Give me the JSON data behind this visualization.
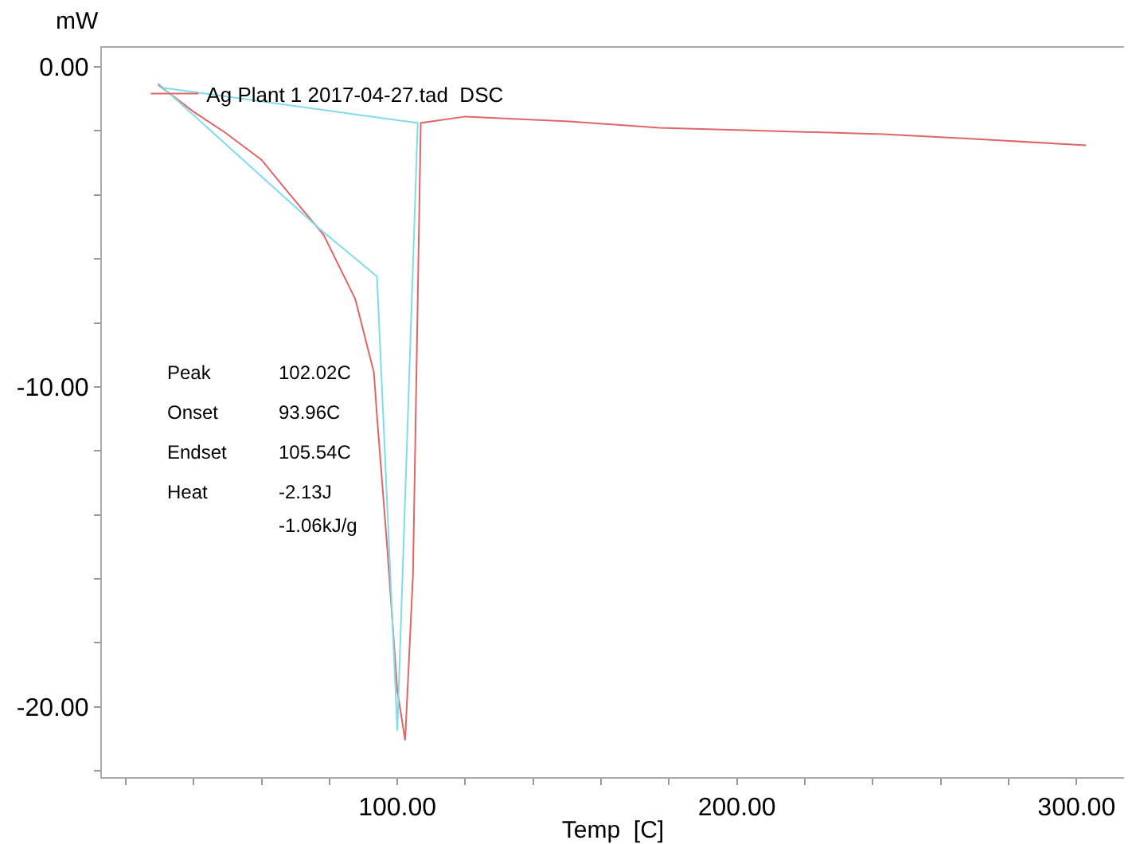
{
  "chart_data": {
    "type": "line",
    "xlabel": "Temp  [C]",
    "ylabel": "mW",
    "series": [
      {
        "name": "Ag Plant 1 2017-04-27.tad  DSC",
        "color": "#e06666",
        "x": [
          29.5,
          40,
          49.3,
          60,
          67.7,
          78.3,
          87.6,
          93.1,
          94,
          97,
          100,
          102.3,
          104.6,
          106.9,
          120,
          150.7,
          177,
          210,
          243,
          270,
          302.8
        ],
        "values": [
          -0.55,
          -1.4,
          -2.05,
          -2.9,
          -3.9,
          -5.25,
          -7.25,
          -9.55,
          -10.9,
          -15,
          -19.5,
          -21.05,
          -15.9,
          -1.75,
          -1.55,
          -1.7,
          -1.9,
          -2.0,
          -2.1,
          -2.25,
          -2.45
        ]
      },
      {
        "color": "#7fdcec",
        "x": [
          29.5,
          49.3,
          77,
          94,
          100,
          106,
          30.9
        ],
        "values": [
          -0.5,
          -2.4,
          -5.05,
          -6.55,
          -20.75,
          -1.75,
          -0.65
        ]
      }
    ],
    "xlim": [
      13,
      314
    ],
    "ylim": [
      -22.2,
      0.6
    ],
    "xticks": [
      {
        "value": 20,
        "label": null
      },
      {
        "value": 40,
        "label": null
      },
      {
        "value": 60,
        "label": null
      },
      {
        "value": 80,
        "label": null
      },
      {
        "value": 100,
        "label": "100.00"
      },
      {
        "value": 120,
        "label": null
      },
      {
        "value": 140,
        "label": null
      },
      {
        "value": 160,
        "label": null
      },
      {
        "value": 180,
        "label": null
      },
      {
        "value": 200,
        "label": "200.00"
      },
      {
        "value": 220,
        "label": null
      },
      {
        "value": 240,
        "label": null
      },
      {
        "value": 260,
        "label": null
      },
      {
        "value": 280,
        "label": null
      },
      {
        "value": 300,
        "label": "300.00"
      }
    ],
    "yticks": [
      {
        "value": 0,
        "label": "0.00"
      },
      {
        "value": -2,
        "label": null
      },
      {
        "value": -4,
        "label": null
      },
      {
        "value": -6,
        "label": null
      },
      {
        "value": -8,
        "label": null
      },
      {
        "value": -10,
        "label": "-10.00"
      },
      {
        "value": -12,
        "label": null
      },
      {
        "value": -14,
        "label": null
      },
      {
        "value": -16,
        "label": null
      },
      {
        "value": -18,
        "label": null
      },
      {
        "value": -20,
        "label": "-20.00"
      },
      {
        "value": -22,
        "label": null
      }
    ],
    "grid": false,
    "legend": "top left",
    "marker": "none",
    "line_style": "solid",
    "annotations": [
      "Peak",
      "102.02C",
      "Onset",
      "93.96C",
      "Endset",
      "105.54C",
      "Heat",
      "-2.13J",
      "-1.06kJ/g"
    ]
  }
}
